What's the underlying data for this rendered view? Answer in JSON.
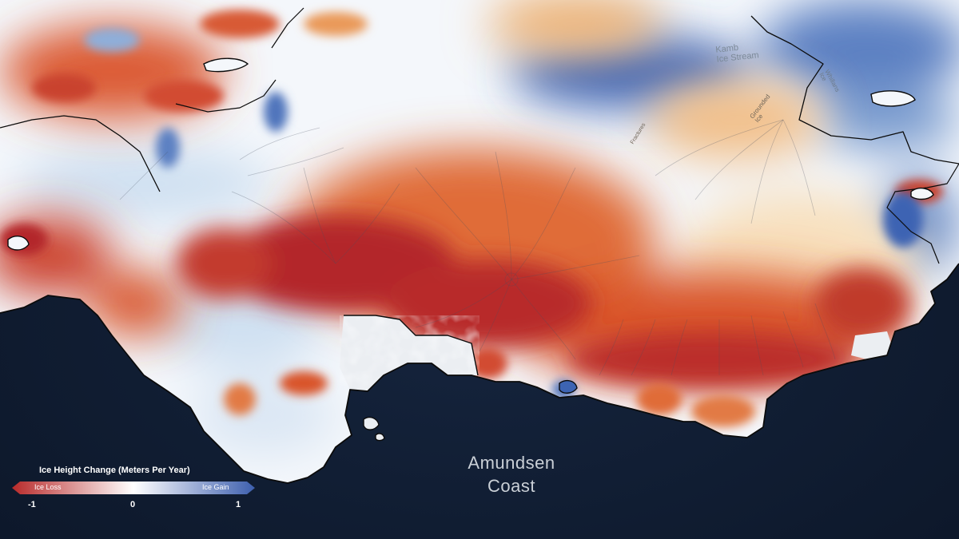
{
  "map": {
    "place_labels": {
      "kamb": "Kamb\nIce Stream",
      "whillans": "Whillans\nIce",
      "grounded": "Grounded\nIce",
      "fracture": "Fractures"
    },
    "coast_label": "Amundsen\nCoast"
  },
  "legend": {
    "title": "Ice Height Change (Meters Per Year)",
    "loss_label": "Ice Loss",
    "gain_label": "Ice Gain",
    "tick_min": "-1",
    "tick_mid": "0",
    "tick_max": "1",
    "scale": {
      "min": -1,
      "mid": 0,
      "max": 1
    },
    "colors": {
      "loss": "#b82a2a",
      "neutral": "#ffffff",
      "gain": "#3d5fae"
    }
  },
  "colors": {
    "ocean": "#0e1a2e",
    "deep_loss": "#b3262a",
    "moderate_loss": "#d9542a",
    "light_loss": "#f0a35a",
    "faint_loss": "#f8dcb4",
    "neutral": "#f4f7fb",
    "light_gain": "#cfe0f1",
    "gain": "#5b80c2",
    "strong_gain": "#3559a8",
    "ice_shelf": "#ebeef2",
    "coastline": "#0b0b0b"
  }
}
